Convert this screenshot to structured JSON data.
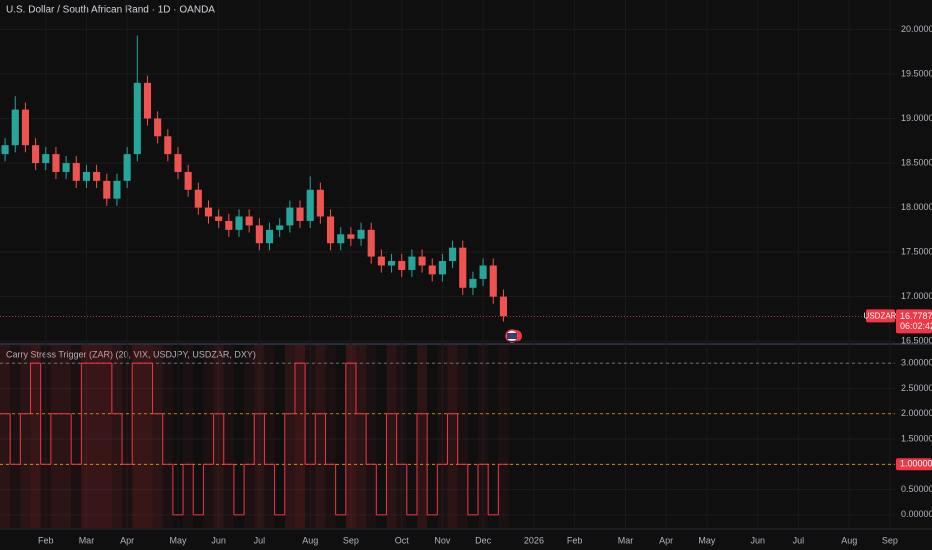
{
  "chart_data": [
    {
      "type": "candlestick",
      "title": "U.S. Dollar / South African Rand · 1D · OANDA",
      "categories": [
        null,
        null,
        null,
        null,
        "Feb",
        null,
        null,
        null,
        "Mar",
        null,
        null,
        null,
        "Apr",
        null,
        null,
        null,
        null,
        "May",
        null,
        null,
        null,
        "Jun",
        null,
        null,
        null,
        "Jul",
        null,
        null,
        null,
        null,
        "Aug",
        null,
        null,
        null,
        "Sep",
        null,
        null,
        null,
        null,
        "Oct",
        null,
        null,
        null,
        "Nov",
        null,
        null,
        null,
        "Dec",
        null,
        null,
        null,
        null,
        "2026",
        null,
        null,
        null,
        "Feb",
        null,
        null,
        null,
        null,
        "Mar",
        null,
        null,
        null,
        "Apr",
        null,
        null,
        null,
        "May",
        null,
        null,
        null,
        null,
        "Jun",
        null,
        null,
        null,
        "Jul",
        null,
        null,
        null,
        null,
        "Aug",
        null,
        null,
        null,
        "Sep"
      ],
      "open": [
        18.6,
        18.7,
        19.1,
        18.7,
        18.5,
        18.6,
        18.4,
        18.5,
        18.3,
        18.4,
        18.3,
        18.1,
        18.3,
        18.6,
        19.4,
        19.0,
        18.8,
        18.6,
        18.4,
        18.2,
        18.0,
        17.9,
        17.85,
        17.75,
        17.9,
        17.8,
        17.6,
        17.75,
        17.8,
        18.0,
        17.85,
        18.2,
        17.9,
        17.6,
        17.7,
        17.65,
        17.75,
        17.45,
        17.35,
        17.4,
        17.3,
        17.45,
        17.35,
        17.25,
        17.4,
        17.55,
        17.1,
        17.2,
        17.35,
        17.0,
        null,
        null,
        null,
        null,
        null,
        null,
        null,
        null,
        null,
        null,
        null,
        null,
        null,
        null,
        null,
        null,
        null,
        null,
        null,
        null,
        null,
        null,
        null,
        null,
        null,
        null,
        null,
        null,
        null,
        null,
        null,
        null,
        null,
        null,
        null,
        null,
        null,
        null
      ],
      "high": [
        18.78,
        19.25,
        19.18,
        18.78,
        18.68,
        18.68,
        18.58,
        18.58,
        18.48,
        18.48,
        18.38,
        18.38,
        18.68,
        19.93,
        19.48,
        19.08,
        18.88,
        18.68,
        18.48,
        18.28,
        18.08,
        17.98,
        17.93,
        17.98,
        17.98,
        17.88,
        17.83,
        17.88,
        18.08,
        18.08,
        18.35,
        18.28,
        17.98,
        17.78,
        17.78,
        17.83,
        17.83,
        17.53,
        17.48,
        17.48,
        17.53,
        17.53,
        17.43,
        17.48,
        17.63,
        17.63,
        17.28,
        17.43,
        17.43,
        17.08,
        null,
        null,
        null,
        null,
        null,
        null,
        null,
        null,
        null,
        null,
        null,
        null,
        null,
        null,
        null,
        null,
        null,
        null,
        null,
        null,
        null,
        null,
        null,
        null,
        null,
        null,
        null,
        null,
        null,
        null,
        null,
        null,
        null,
        null,
        null,
        null,
        null,
        null
      ],
      "low": [
        18.52,
        18.62,
        18.62,
        18.42,
        18.42,
        18.32,
        18.32,
        18.22,
        18.22,
        18.22,
        18.02,
        18.02,
        18.22,
        18.52,
        18.92,
        18.72,
        18.52,
        18.32,
        18.12,
        17.92,
        17.82,
        17.77,
        17.67,
        17.67,
        17.72,
        17.52,
        17.52,
        17.67,
        17.72,
        17.77,
        17.77,
        17.82,
        17.52,
        17.52,
        17.57,
        17.57,
        17.37,
        17.27,
        17.27,
        17.22,
        17.22,
        17.27,
        17.17,
        17.17,
        17.32,
        17.02,
        17.02,
        17.12,
        16.92,
        16.72,
        null,
        null,
        null,
        null,
        null,
        null,
        null,
        null,
        null,
        null,
        null,
        null,
        null,
        null,
        null,
        null,
        null,
        null,
        null,
        null,
        null,
        null,
        null,
        null,
        null,
        null,
        null,
        null,
        null,
        null,
        null,
        null,
        null,
        null,
        null,
        null,
        null,
        null
      ],
      "close": [
        18.7,
        19.1,
        18.7,
        18.5,
        18.6,
        18.4,
        18.5,
        18.3,
        18.4,
        18.3,
        18.1,
        18.3,
        18.6,
        19.4,
        19.0,
        18.8,
        18.6,
        18.4,
        18.2,
        18.0,
        17.9,
        17.85,
        17.75,
        17.9,
        17.8,
        17.6,
        17.75,
        17.8,
        18.0,
        17.85,
        18.2,
        17.9,
        17.6,
        17.7,
        17.65,
        17.75,
        17.45,
        17.35,
        17.4,
        17.3,
        17.45,
        17.35,
        17.25,
        17.4,
        17.55,
        17.1,
        17.2,
        17.35,
        17.0,
        16.78,
        null,
        null,
        null,
        null,
        null,
        null,
        null,
        null,
        null,
        null,
        null,
        null,
        null,
        null,
        null,
        null,
        null,
        null,
        null,
        null,
        null,
        null,
        null,
        null,
        null,
        null,
        null,
        null,
        null,
        null,
        null,
        null,
        null,
        null,
        null,
        null,
        null,
        null
      ],
      "up_color": "#26a69a",
      "down_color": "#ef5350",
      "ylim": [
        16.48,
        20.33
      ],
      "yticks": [
        {
          "value": 16.5,
          "label": "16.50000"
        },
        {
          "value": 17,
          "label": "17.00000"
        },
        {
          "value": 17.5,
          "label": "17.50000"
        },
        {
          "value": 18,
          "label": "18.00000"
        },
        {
          "value": 18.5,
          "label": "18.50000"
        },
        {
          "value": 19,
          "label": "19.00000"
        },
        {
          "value": 19.5,
          "label": "19.50000"
        },
        {
          "value": 20,
          "label": "20.00000"
        }
      ],
      "grid": true,
      "last_price": {
        "symbol": "USDZAR",
        "value": 16.7787,
        "label": "16.77870",
        "countdown": "06:02:42",
        "color": "#f23645"
      }
    },
    {
      "type": "step",
      "title": "Carry Stress Trigger (ZAR) (20, VIX, USDJPY, USDZAR, DXY)",
      "values": [
        2,
        1,
        2,
        3,
        1,
        2,
        2,
        1,
        3,
        3,
        3,
        2,
        1,
        3,
        3,
        2,
        1,
        0,
        1,
        0,
        1,
        2,
        1,
        0,
        1,
        2,
        1,
        0,
        2,
        3,
        1,
        2,
        1,
        0,
        3,
        2,
        1,
        0,
        2,
        1,
        0,
        2,
        0,
        1,
        2,
        1,
        0,
        1,
        0,
        1,
        null,
        null,
        null,
        null,
        null,
        null,
        null,
        null,
        null,
        null,
        null,
        null,
        null,
        null,
        null,
        null,
        null,
        null,
        null,
        null,
        null,
        null,
        null,
        null,
        null,
        null,
        null,
        null,
        null,
        null,
        null,
        null,
        null,
        null,
        null,
        null,
        null,
        null
      ],
      "color": "#f23645",
      "ylim": [
        -0.26,
        3.36
      ],
      "yticks": [
        {
          "value": 0,
          "label": "0.00000"
        },
        {
          "value": 0.5,
          "label": "0.50000"
        },
        {
          "value": 1,
          "label": "1.00000"
        },
        {
          "value": 1.5,
          "label": "1.50000"
        },
        {
          "value": 2,
          "label": "2.00000"
        },
        {
          "value": 2.5,
          "label": "2.50000"
        },
        {
          "value": 3,
          "label": "3.00000"
        }
      ],
      "grid": true,
      "levels": [
        {
          "value": 3,
          "color": "#787b86"
        },
        {
          "value": 2,
          "color": "#ff9800"
        },
        {
          "value": 1,
          "color": "#ff9800"
        }
      ],
      "last_value": {
        "value": 1,
        "label": "1.00000"
      }
    }
  ]
}
